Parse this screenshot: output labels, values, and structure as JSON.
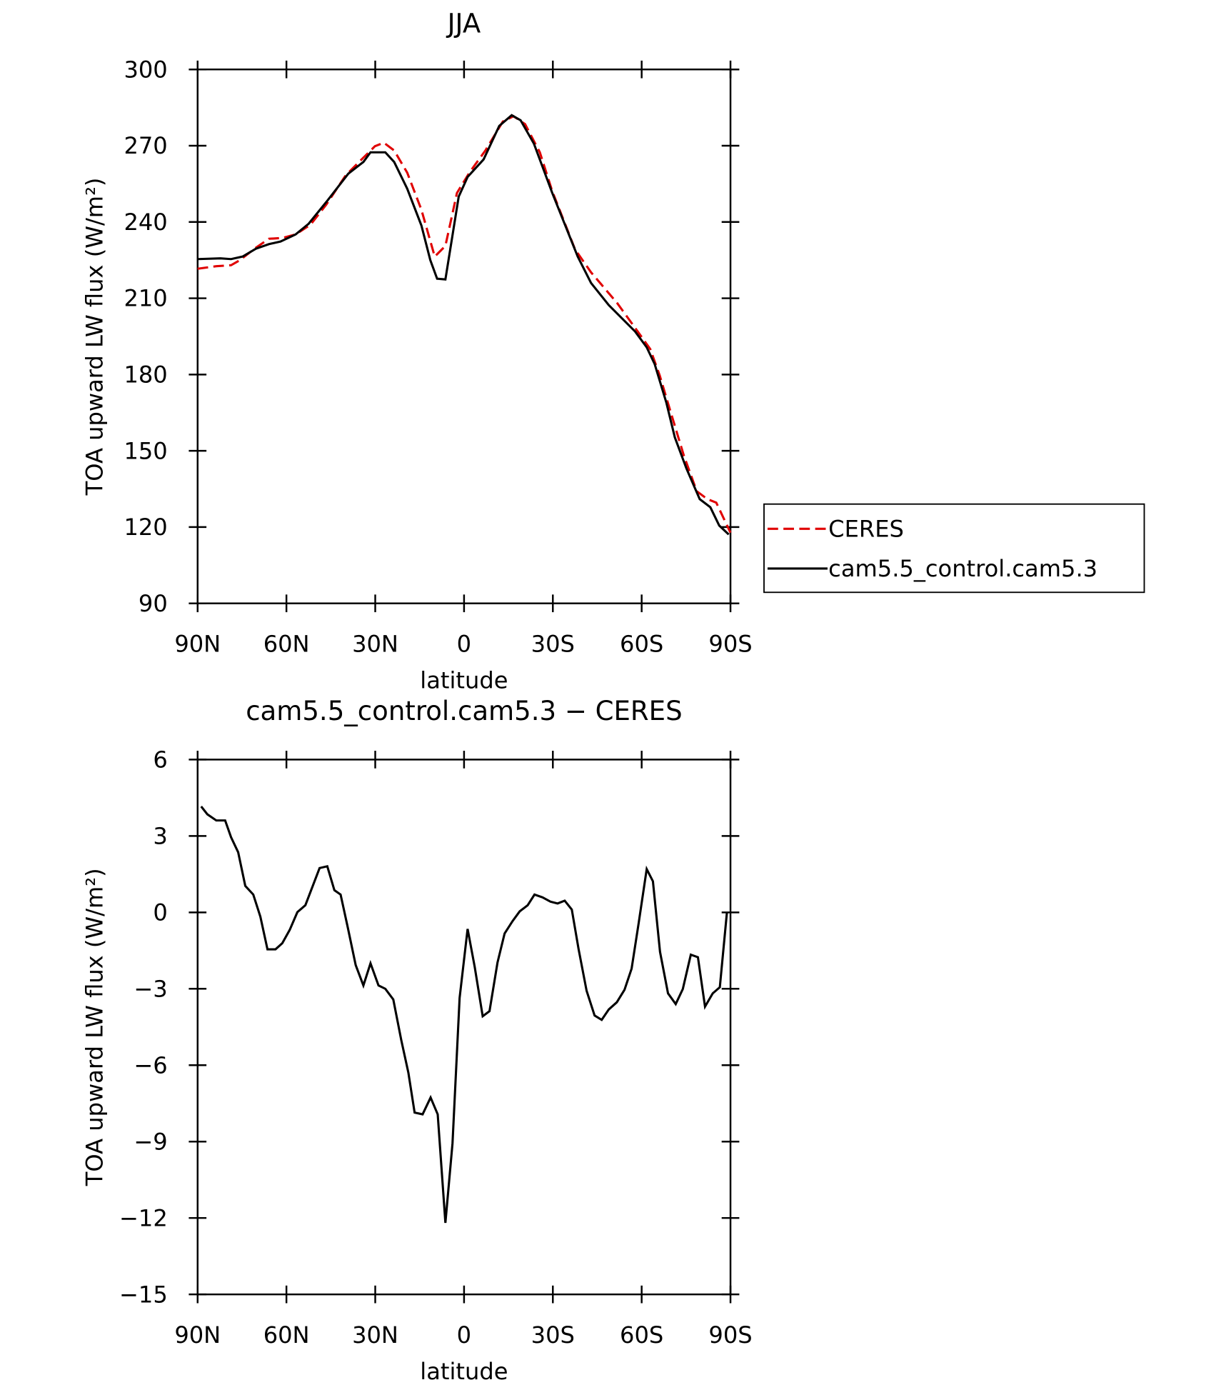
{
  "chart_data": [
    {
      "type": "line",
      "title": "JJA",
      "x_label": "latitude",
      "y_label": "TOA upward LW flux (W/m²)",
      "xlim": [
        90,
        -90
      ],
      "xticks": [
        {
          "value": 90,
          "label": "90N"
        },
        {
          "value": 60,
          "label": "60N"
        },
        {
          "value": 30,
          "label": "30N"
        },
        0,
        {
          "value": -30,
          "label": "30S"
        },
        {
          "value": -60,
          "label": "60S"
        },
        {
          "value": -90,
          "label": "90S"
        }
      ],
      "ylim": [
        90,
        300
      ],
      "yticks": [
        90,
        120,
        150,
        180,
        210,
        240,
        270,
        300
      ],
      "legend": "right",
      "series": [
        {
          "name": "CERES",
          "color": "#e00000",
          "line_style": "dashed",
          "x": [
            90,
            83.7,
            78.7,
            75.7,
            70.3,
            65.9,
            61.4,
            56.9,
            51.9,
            46.5,
            40,
            34,
            30.1,
            27.1,
            23.6,
            19.2,
            14.4,
            9.9,
            6.3,
            2.4,
            -1.8,
            -7.2,
            -13.1,
            -16.7,
            -20.6,
            -25.6,
            -29.8,
            -37.5,
            -42.9,
            -51.8,
            -59.3,
            -62.9,
            -66.1,
            -69.7,
            -74.2,
            -78.6,
            -82.2,
            -85.2,
            -90
          ],
          "values": [
            221.6,
            222.6,
            223,
            225,
            229.9,
            233.4,
            233.7,
            235.1,
            238.9,
            246.9,
            258.3,
            265.3,
            269.8,
            271.2,
            268.1,
            259.4,
            244.8,
            226.4,
            230.6,
            251.4,
            259.4,
            268.1,
            279.5,
            281.6,
            278.5,
            267.4,
            252.1,
            229.2,
            220.2,
            208,
            195.9,
            190,
            179.6,
            165.6,
            148.3,
            134.1,
            131,
            129.6,
            117.8
          ]
        },
        {
          "name": "cam5.5_control.cam5.3",
          "color": "#000000",
          "line_style": "solid",
          "x": [
            90,
            82.3,
            78.7,
            74.8,
            70.3,
            65.9,
            62,
            56.9,
            52.5,
            46.5,
            39.1,
            34,
            31.6,
            26.6,
            23.6,
            19.2,
            14.4,
            11.4,
            9.1,
            6.3,
            1.8,
            -1.2,
            -6.6,
            -11.9,
            -16.1,
            -19.1,
            -23.6,
            -29.8,
            -38.4,
            -42.9,
            -48.9,
            -57.8,
            -61.7,
            -64.4,
            -68.3,
            -71.2,
            -75.1,
            -79.6,
            -83.2,
            -86.2,
            -89.4
          ],
          "values": [
            225.4,
            225.7,
            225.4,
            226.4,
            229.5,
            231.3,
            232.3,
            235.1,
            239.3,
            247.9,
            259,
            263.6,
            267.4,
            267.4,
            263.6,
            253.1,
            238.6,
            225,
            217.7,
            217.4,
            250,
            257.7,
            264.6,
            277.8,
            282,
            280,
            270.8,
            251.4,
            226.4,
            216,
            207.3,
            196.9,
            190.7,
            184.1,
            169.1,
            155.3,
            143.1,
            131,
            127.8,
            120.6,
            117.1
          ]
        }
      ]
    },
    {
      "type": "line",
      "title": "cam5.5_control.cam5.3 − CERES",
      "x_label": "latitude",
      "y_label": "TOA upward LW flux (W/m²)",
      "xlim": [
        90,
        -90
      ],
      "xticks": [
        {
          "value": 90,
          "label": "90N"
        },
        {
          "value": 60,
          "label": "60N"
        },
        {
          "value": 30,
          "label": "30N"
        },
        0,
        {
          "value": -30,
          "label": "30S"
        },
        {
          "value": -60,
          "label": "60S"
        },
        {
          "value": -90,
          "label": "90S"
        }
      ],
      "ylim": [
        -15,
        6
      ],
      "yticks": [
        {
          "value": -15,
          "label": "−15"
        },
        {
          "value": -12,
          "label": "−12"
        },
        {
          "value": -9,
          "label": "−9"
        },
        {
          "value": -6,
          "label": "−6"
        },
        {
          "value": -3,
          "label": "−3"
        },
        0,
        3,
        6
      ],
      "series": [
        {
          "color": "#000000",
          "line_style": "solid",
          "x": [
            88.8,
            86.7,
            83.7,
            80.7,
            78.7,
            76.3,
            73.9,
            71.2,
            68.8,
            66.4,
            63.7,
            61.4,
            58.9,
            56.3,
            53.6,
            48.8,
            46.2,
            43.8,
            41.7,
            39.3,
            36.6,
            34,
            31.6,
            28.9,
            26.6,
            23.9,
            21.2,
            18.8,
            16.7,
            14,
            11.3,
            8.9,
            6.3,
            3.9,
            1.5,
            -1.2,
            -3.6,
            -6.3,
            -8.6,
            -11.3,
            -13.7,
            -16.4,
            -18.8,
            -21.5,
            -23.8,
            -26.5,
            -29.2,
            -31.6,
            -34,
            -36.4,
            -38.7,
            -41.4,
            -44.1,
            -46.5,
            -48.9,
            -51.6,
            -54.2,
            -56.6,
            -59,
            -61.7,
            -63.8,
            -66.2,
            -68.9,
            -71.5,
            -73.9,
            -76.6,
            -79,
            -81.4,
            -84,
            -86.4,
            -88.8
          ],
          "values": [
            4.16,
            3.85,
            3.61,
            3.61,
            2.95,
            2.36,
            1.04,
            0.7,
            -0.17,
            -1.45,
            -1.45,
            -1.21,
            -0.69,
            0.01,
            0.28,
            1.74,
            1.81,
            0.87,
            0.7,
            -0.58,
            -2.07,
            -2.87,
            -2,
            -2.87,
            -3,
            -3.42,
            -5.02,
            -6.3,
            -7.86,
            -7.93,
            -7.27,
            -7.93,
            -12.19,
            -9.07,
            -3.36,
            -0.65,
            -2.14,
            -4.08,
            -3.88,
            -1.97,
            -0.83,
            -0.34,
            0.04,
            0.28,
            0.7,
            0.59,
            0.42,
            0.35,
            0.46,
            0.11,
            -1.45,
            -3.08,
            -4.05,
            -4.22,
            -3.81,
            -3.53,
            -3.04,
            -2.21,
            -0.41,
            1.7,
            1.22,
            -1.55,
            -3.18,
            -3.6,
            -3.01,
            -1.66,
            -1.76,
            -3.7,
            -3.18,
            -2.94,
            0
          ]
        }
      ]
    }
  ]
}
